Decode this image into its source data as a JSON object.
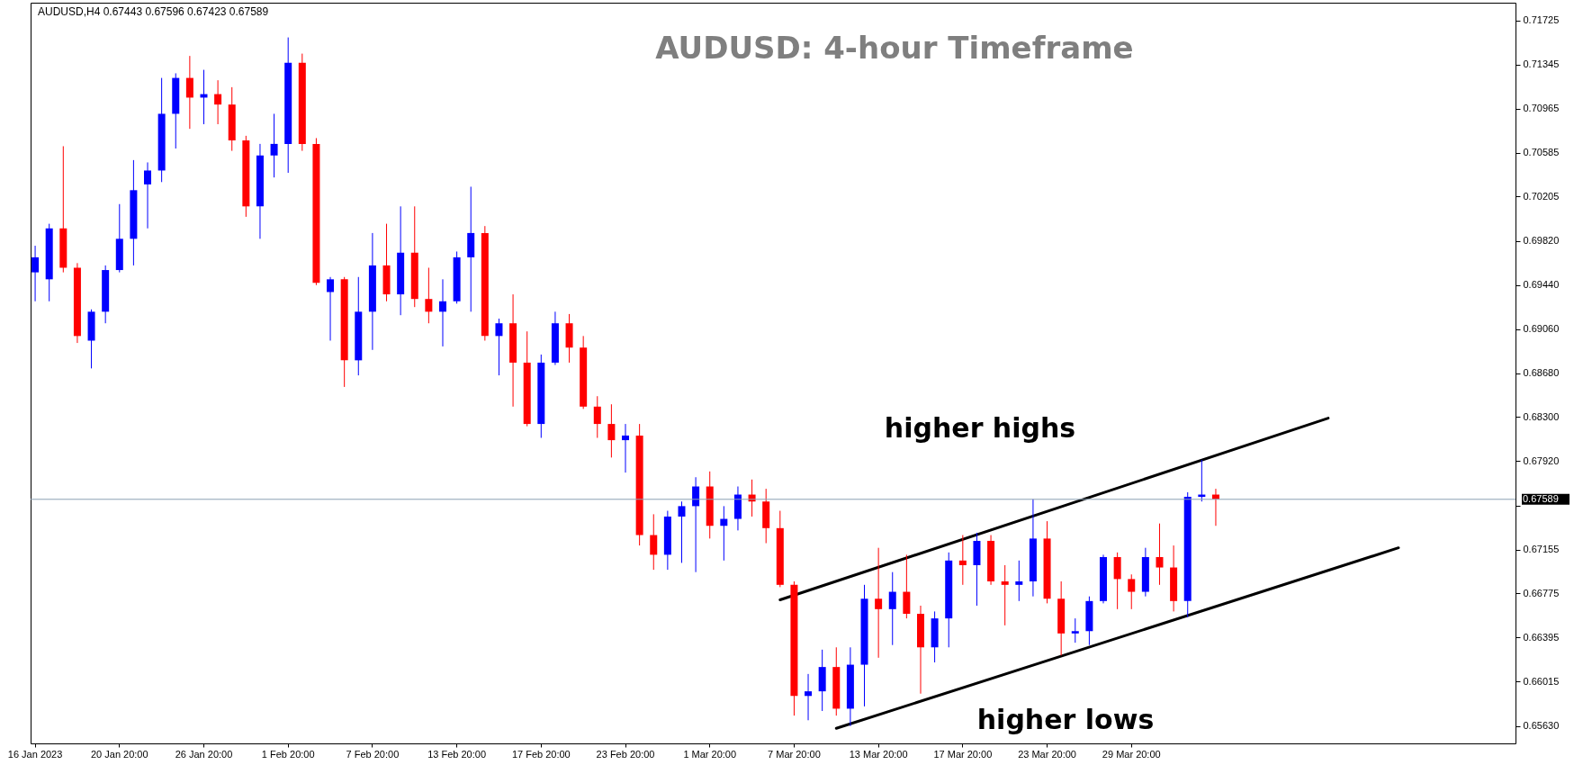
{
  "chart_data": {
    "type": "candlestick",
    "title": "AUDUSD: 4-hour Timeframe",
    "subtitle": "AUDUSD,H4  0.67443 0.67596 0.67423 0.67589",
    "annotations": [
      "higher highs",
      "higher lows"
    ],
    "categories": [
      "16 Jan 2023",
      null,
      null,
      null,
      null,
      null,
      "20 Jan 20:00",
      null,
      null,
      null,
      null,
      null,
      "26 Jan 20:00",
      null,
      null,
      null,
      null,
      null,
      "1 Feb 20:00",
      null,
      null,
      null,
      null,
      null,
      "7 Feb 20:00",
      null,
      null,
      null,
      null,
      null,
      "13 Feb 20:00",
      null,
      null,
      null,
      null,
      null,
      "17 Feb 20:00",
      null,
      null,
      null,
      null,
      null,
      "23 Feb 20:00",
      null,
      null,
      null,
      null,
      null,
      "1 Mar 20:00",
      null,
      null,
      null,
      null,
      null,
      "7 Mar 20:00",
      null,
      null,
      null,
      null,
      null,
      "13 Mar 20:00",
      null,
      null,
      null,
      null,
      null,
      "17 Mar 20:00",
      null,
      null,
      null,
      null,
      null,
      "23 Mar 20:00",
      null,
      null,
      null,
      null,
      null,
      "29 Mar 20:00",
      null,
      null,
      null,
      null,
      null,
      null,
      null,
      null,
      null,
      null,
      null,
      null,
      null,
      null,
      null,
      null,
      null,
      null,
      null,
      null,
      null,
      null,
      null,
      null,
      null,
      null,
      null
    ],
    "ohlc": [
      [
        0.6955,
        0.6978,
        0.693,
        0.6968
      ],
      [
        0.6949,
        0.6997,
        0.693,
        0.6993
      ],
      [
        0.6993,
        0.7064,
        0.6955,
        0.6959
      ],
      [
        0.6959,
        0.6963,
        0.6894,
        0.69
      ],
      [
        0.6896,
        0.6923,
        0.6872,
        0.6921
      ],
      [
        0.6921,
        0.6961,
        0.6911,
        0.6957
      ],
      [
        0.6957,
        0.7014,
        0.6955,
        0.6984
      ],
      [
        0.6984,
        0.7052,
        0.6961,
        0.7026
      ],
      [
        0.7031,
        0.705,
        0.6993,
        0.7043
      ],
      [
        0.7043,
        0.7123,
        0.7033,
        0.7092
      ],
      [
        0.7092,
        0.7127,
        0.7062,
        0.7123
      ],
      [
        0.7123,
        0.7142,
        0.7079,
        0.7106
      ],
      [
        0.7106,
        0.713,
        0.7083,
        0.7109
      ],
      [
        0.7109,
        0.7121,
        0.7083,
        0.71
      ],
      [
        0.71,
        0.7115,
        0.706,
        0.7069
      ],
      [
        0.7069,
        0.7073,
        0.7003,
        0.7012
      ],
      [
        0.7012,
        0.7066,
        0.6984,
        0.7056
      ],
      [
        0.7056,
        0.7092,
        0.7037,
        0.7066
      ],
      [
        0.7066,
        0.7158,
        0.7041,
        0.7136
      ],
      [
        0.7136,
        0.7144,
        0.706,
        0.7066
      ],
      [
        0.7066,
        0.7071,
        0.6944,
        0.6946
      ],
      [
        0.6938,
        0.6951,
        0.6896,
        0.6949
      ],
      [
        0.6949,
        0.6951,
        0.6856,
        0.6879
      ],
      [
        0.6879,
        0.6951,
        0.6866,
        0.6921
      ],
      [
        0.6921,
        0.6989,
        0.6888,
        0.6961
      ],
      [
        0.6961,
        0.6997,
        0.693,
        0.6936
      ],
      [
        0.6936,
        0.7012,
        0.6918,
        0.6972
      ],
      [
        0.6972,
        0.7012,
        0.6925,
        0.6932
      ],
      [
        0.6932,
        0.6959,
        0.6911,
        0.6921
      ],
      [
        0.6921,
        0.6949,
        0.6891,
        0.693
      ],
      [
        0.693,
        0.6973,
        0.6928,
        0.6968
      ],
      [
        0.6968,
        0.7029,
        0.6921,
        0.6989
      ],
      [
        0.6989,
        0.6995,
        0.6896,
        0.69
      ],
      [
        0.69,
        0.6915,
        0.6866,
        0.6911
      ],
      [
        0.6911,
        0.6936,
        0.6839,
        0.6877
      ],
      [
        0.6877,
        0.6904,
        0.6822,
        0.6824
      ],
      [
        0.6824,
        0.6884,
        0.6812,
        0.6877
      ],
      [
        0.6877,
        0.6921,
        0.6875,
        0.6911
      ],
      [
        0.6911,
        0.6919,
        0.6877,
        0.689
      ],
      [
        0.689,
        0.69,
        0.6837,
        0.6839
      ],
      [
        0.6839,
        0.6848,
        0.6812,
        0.6824
      ],
      [
        0.6824,
        0.6841,
        0.6795,
        0.681
      ],
      [
        0.681,
        0.6824,
        0.6782,
        0.6814
      ],
      [
        0.6814,
        0.6824,
        0.6719,
        0.6728
      ],
      [
        0.6728,
        0.6746,
        0.6698,
        0.6711
      ],
      [
        0.6711,
        0.6749,
        0.6698,
        0.6744
      ],
      [
        0.6744,
        0.6757,
        0.6704,
        0.6753
      ],
      [
        0.6753,
        0.6778,
        0.6696,
        0.677
      ],
      [
        0.677,
        0.6783,
        0.6725,
        0.6736
      ],
      [
        0.6736,
        0.6753,
        0.6706,
        0.6742
      ],
      [
        0.6742,
        0.677,
        0.6732,
        0.6763
      ],
      [
        0.6763,
        0.6776,
        0.6744,
        0.6757
      ],
      [
        0.6757,
        0.6768,
        0.6721,
        0.6734
      ],
      [
        0.6734,
        0.6749,
        0.6683,
        0.6685
      ],
      [
        0.6685,
        0.6688,
        0.6572,
        0.6589
      ],
      [
        0.6589,
        0.6608,
        0.6568,
        0.6593
      ],
      [
        0.6593,
        0.6629,
        0.6576,
        0.6614
      ],
      [
        0.6614,
        0.6631,
        0.6572,
        0.6578
      ],
      [
        0.6578,
        0.6631,
        0.6563,
        0.6616
      ],
      [
        0.6616,
        0.6685,
        0.658,
        0.6673
      ],
      [
        0.6673,
        0.6717,
        0.6622,
        0.6664
      ],
      [
        0.6664,
        0.6696,
        0.6633,
        0.6679
      ],
      [
        0.6679,
        0.6711,
        0.6656,
        0.666
      ],
      [
        0.666,
        0.6667,
        0.6591,
        0.6631
      ],
      [
        0.6631,
        0.6662,
        0.6618,
        0.6656
      ],
      [
        0.6656,
        0.6713,
        0.6631,
        0.6706
      ],
      [
        0.6706,
        0.6728,
        0.6685,
        0.6702
      ],
      [
        0.6702,
        0.673,
        0.6667,
        0.6723
      ],
      [
        0.6723,
        0.6728,
        0.6685,
        0.6688
      ],
      [
        0.6688,
        0.6702,
        0.665,
        0.6685
      ],
      [
        0.6685,
        0.6706,
        0.6671,
        0.6688
      ],
      [
        0.6688,
        0.6759,
        0.6675,
        0.6725
      ],
      [
        0.6725,
        0.674,
        0.6669,
        0.6673
      ],
      [
        0.6673,
        0.6688,
        0.6624,
        0.6643
      ],
      [
        0.6643,
        0.6656,
        0.6635,
        0.6645
      ],
      [
        0.6645,
        0.6675,
        0.6633,
        0.6671
      ],
      [
        0.6671,
        0.6711,
        0.6669,
        0.6709
      ],
      [
        0.6709,
        0.6713,
        0.6664,
        0.669
      ],
      [
        0.669,
        0.6694,
        0.6664,
        0.6679
      ],
      [
        0.6679,
        0.6717,
        0.6675,
        0.6709
      ],
      [
        0.6709,
        0.6738,
        0.6685,
        0.67
      ],
      [
        0.67,
        0.6719,
        0.6662,
        0.6671
      ],
      [
        0.6671,
        0.6765,
        0.6657,
        0.6761
      ],
      [
        0.6761,
        0.6793,
        0.6757,
        0.6763
      ],
      [
        0.6763,
        0.6768,
        0.6736,
        0.6759
      ],
      null,
      null,
      null,
      null,
      null,
      null,
      null,
      null,
      null,
      null,
      null,
      null,
      null,
      null,
      null,
      null,
      null,
      null,
      null,
      null,
      null
    ],
    "colors": [
      "#0000ff",
      "#0000ff",
      "#ff0000",
      "#ff0000",
      "#0000ff",
      "#0000ff",
      "#0000ff",
      "#0000ff",
      "#0000ff",
      "#0000ff",
      "#0000ff",
      "#ff0000",
      "#0000ff",
      "#ff0000",
      "#ff0000",
      "#ff0000",
      "#0000ff",
      "#0000ff",
      "#0000ff",
      "#ff0000",
      "#ff0000",
      "#0000ff",
      "#ff0000",
      "#0000ff",
      "#0000ff",
      "#ff0000",
      "#0000ff",
      "#ff0000",
      "#ff0000",
      "#0000ff",
      "#0000ff",
      "#0000ff",
      "#ff0000",
      "#0000ff",
      "#ff0000",
      "#ff0000",
      "#0000ff",
      "#0000ff",
      "#ff0000",
      "#ff0000",
      "#ff0000",
      "#ff0000",
      "#0000ff",
      "#ff0000",
      "#ff0000",
      "#0000ff",
      "#0000ff",
      "#0000ff",
      "#ff0000",
      "#0000ff",
      "#0000ff",
      "#ff0000",
      "#ff0000",
      "#ff0000",
      "#ff0000",
      "#0000ff",
      "#0000ff",
      "#ff0000",
      "#0000ff",
      "#0000ff",
      "#ff0000",
      "#0000ff",
      "#ff0000",
      "#ff0000",
      "#0000ff",
      "#0000ff",
      "#ff0000",
      "#0000ff",
      "#ff0000",
      "#ff0000",
      "#0000ff",
      "#0000ff",
      "#ff0000",
      "#ff0000",
      "#0000ff",
      "#0000ff",
      "#0000ff",
      "#ff0000",
      "#ff0000",
      "#0000ff",
      "#ff0000",
      "#ff0000",
      "#0000ff",
      "#0000ff",
      "#ff0000",
      null,
      null,
      null,
      null,
      null,
      null,
      null,
      null,
      null,
      null,
      null,
      null,
      null,
      null,
      null,
      null,
      null,
      null,
      null,
      null,
      null
    ],
    "series": [
      {
        "type": "line",
        "color": "#000000",
        "values": [
          null,
          null,
          null,
          null,
          null,
          null,
          null,
          null,
          null,
          null,
          null,
          null,
          null,
          null,
          null,
          null,
          null,
          null,
          null,
          null,
          null,
          null,
          null,
          null,
          null,
          null,
          null,
          null,
          null,
          null,
          null,
          null,
          null,
          null,
          null,
          null,
          null,
          null,
          null,
          null,
          null,
          null,
          null,
          null,
          null,
          null,
          null,
          null,
          null,
          null,
          null,
          null,
          null,
          0.6672,
          null,
          null,
          null,
          null,
          null,
          null,
          null,
          null,
          null,
          null,
          null,
          null,
          null,
          null,
          null,
          null,
          null,
          null,
          null,
          null,
          null,
          null,
          null,
          null,
          null,
          null,
          null,
          null,
          null,
          null,
          null,
          null,
          null,
          null,
          null,
          null,
          null,
          null,
          0.6829,
          null,
          null,
          null,
          null,
          null,
          null,
          null,
          null,
          null,
          null,
          null,
          null,
          null
        ]
      },
      {
        "type": "line",
        "color": "#000000",
        "values": [
          null,
          null,
          null,
          null,
          null,
          null,
          null,
          null,
          null,
          null,
          null,
          null,
          null,
          null,
          null,
          null,
          null,
          null,
          null,
          null,
          null,
          null,
          null,
          null,
          null,
          null,
          null,
          null,
          null,
          null,
          null,
          null,
          null,
          null,
          null,
          null,
          null,
          null,
          null,
          null,
          null,
          null,
          null,
          null,
          null,
          null,
          null,
          null,
          null,
          null,
          null,
          null,
          null,
          null,
          null,
          null,
          null,
          0.6561,
          null,
          null,
          null,
          null,
          null,
          null,
          null,
          null,
          null,
          null,
          null,
          null,
          null,
          null,
          null,
          null,
          null,
          null,
          null,
          null,
          null,
          null,
          null,
          null,
          null,
          null,
          null,
          null,
          null,
          null,
          null,
          null,
          null,
          null,
          null,
          null,
          null,
          null,
          null,
          0.6717,
          null,
          null,
          null,
          null,
          null,
          null,
          null,
          null
        ]
      }
    ],
    "ref_lines": [
      {
        "axis": "y",
        "value": 0.67589,
        "label": "0.67589",
        "color": "#8ca0b3"
      }
    ],
    "ylim": [
      0.6548,
      0.7188
    ],
    "yticks": [
      {
        "value": 0.6563,
        "label": "0.65630"
      },
      {
        "value": 0.66015,
        "label": "0.66015"
      },
      {
        "value": 0.66395,
        "label": "0.66395"
      },
      {
        "value": 0.66775,
        "label": "0.66775"
      },
      {
        "value": 0.67155,
        "label": "0.67155"
      },
      {
        "value": 0.67535,
        "label": null
      },
      {
        "value": 0.6792,
        "label": "0.67920"
      },
      {
        "value": 0.683,
        "label": "0.68300"
      },
      {
        "value": 0.6868,
        "label": "0.68680"
      },
      {
        "value": 0.6906,
        "label": "0.69060"
      },
      {
        "value": 0.6944,
        "label": "0.69440"
      },
      {
        "value": 0.6982,
        "label": "0.69820"
      },
      {
        "value": 0.70205,
        "label": "0.70205"
      },
      {
        "value": 0.70585,
        "label": "0.70585"
      },
      {
        "value": 0.70965,
        "label": "0.70965"
      },
      {
        "value": 0.71345,
        "label": "0.71345"
      },
      {
        "value": 0.71725,
        "label": "0.71725"
      }
    ]
  }
}
